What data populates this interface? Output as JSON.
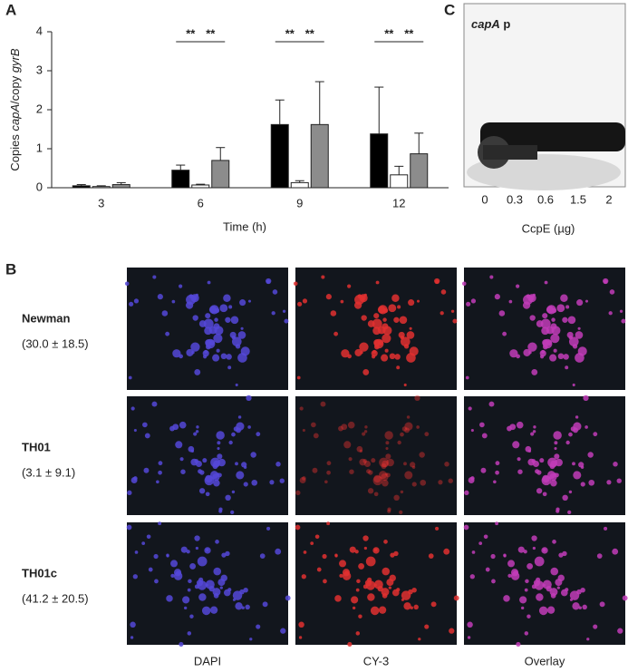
{
  "panel_labels": [
    "A",
    "B",
    "C"
  ],
  "chart_data": {
    "type": "bar",
    "y_label": [
      "Copies ",
      "capA",
      "/copy ",
      "gyrB"
    ],
    "x_label": "Time (h)",
    "categories": [
      "3",
      "6",
      "9",
      "12"
    ],
    "series": [
      {
        "color": "#000000",
        "values": [
          0.05,
          0.45,
          1.62,
          1.38
        ],
        "errors": [
          0.03,
          0.13,
          0.63,
          1.2
        ]
      },
      {
        "color": "#ffffff",
        "values": [
          0.03,
          0.07,
          0.13,
          0.33
        ],
        "errors": [
          0.02,
          0.02,
          0.05,
          0.22
        ]
      },
      {
        "color": "#8c8c8c",
        "values": [
          0.08,
          0.7,
          1.62,
          0.87
        ],
        "errors": [
          0.05,
          0.33,
          1.1,
          0.53
        ]
      }
    ],
    "annotations": [
      "**",
      "**",
      "**",
      "**",
      "**",
      "**"
    ],
    "ylim": [
      0,
      4
    ],
    "yticks": [
      0,
      1,
      2,
      3,
      4
    ],
    "grid": false
  },
  "gel": {
    "label": [
      "capA",
      " p"
    ],
    "lanes": [
      "0",
      "0.3",
      "0.6",
      "1.5",
      "2"
    ],
    "x_label": "CcpE (µg)"
  },
  "microscopy": {
    "columns": [
      "DAPI",
      "CY-3",
      "Overlay"
    ],
    "rows": [
      {
        "name": "Newman",
        "value": "(30.0 ± 18.5)"
      },
      {
        "name": "TH01",
        "value": "(3.1 ± 9.1)"
      },
      {
        "name": "TH01c",
        "value": "(41.2 ± 20.5)"
      }
    ]
  }
}
